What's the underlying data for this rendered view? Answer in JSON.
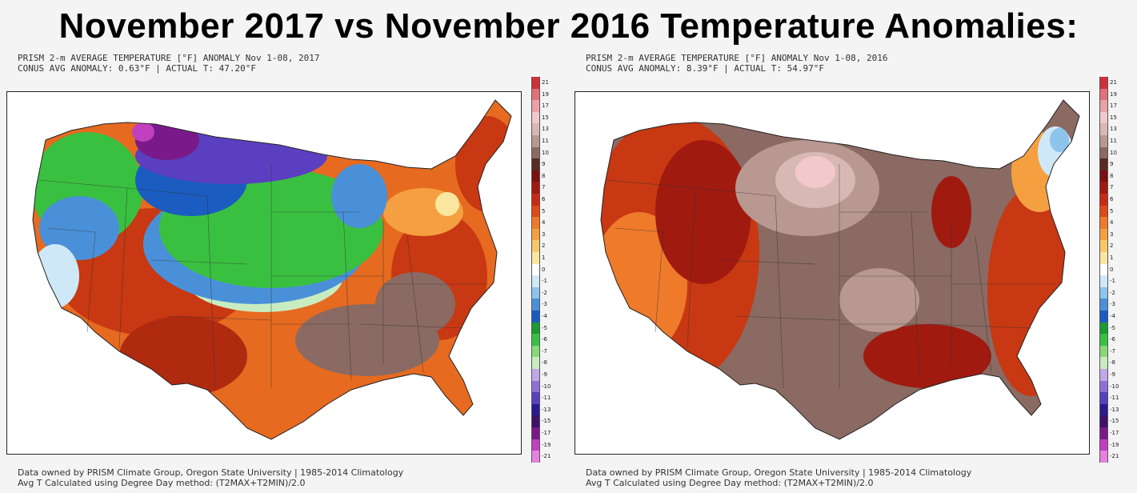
{
  "title": "November 2017 vs November 2016 Temperature Anomalies:",
  "panels": [
    {
      "header_line1": "PRISM 2-m AVERAGE TEMPERATURE [°F] ANOMALY Nov 1-08, 2017",
      "header_line2": "CONUS AVG ANOMALY: 0.63°F | ACTUAL T: 47.20°F",
      "footer_line1": "Data owned by PRISM Climate Group, Oregon State University | 1985-2014 Climatology",
      "footer_line2": "Avg T Calculated using Degree Day method: (T2MAX+T2MIN)/2.0"
    },
    {
      "header_line1": "PRISM 2-m AVERAGE TEMPERATURE [°F] ANOMALY Nov 1-08, 2016",
      "header_line2": "CONUS AVG ANOMALY: 8.39°F | ACTUAL T: 54.97°F",
      "footer_line1": "Data owned by PRISM Climate Group, Oregon State University | 1985-2014 Climatology",
      "footer_line2": "Avg T Calculated using Degree Day method: (T2MAX+T2MIN)/2.0"
    }
  ],
  "colorbar_labels": [
    "21",
    "19",
    "17",
    "15",
    "13",
    "11",
    "10",
    "9",
    "8",
    "7",
    "6",
    "5",
    "4",
    "3",
    "2",
    "1",
    "0",
    "-1",
    "-2",
    "-3",
    "-4",
    "-5",
    "-6",
    "-7",
    "-8",
    "-9",
    "-10",
    "-11",
    "-13",
    "-15",
    "-17",
    "-19",
    "-21"
  ],
  "colorbar_colors": [
    "#d0303a",
    "#e0707a",
    "#eca0a8",
    "#f2c8cc",
    "#d8b8b4",
    "#b89890",
    "#8a6a62",
    "#5a2a24",
    "#7a1010",
    "#a01a10",
    "#c82a12",
    "#e04a18",
    "#ee7a2a",
    "#f5a040",
    "#f8c868",
    "#fbe6a0",
    "#ffffff",
    "#cfe8f8",
    "#8cc4ec",
    "#4a90d8",
    "#1a5cc0",
    "#1a9a30",
    "#3ac040",
    "#88d878",
    "#c8ecc0",
    "#c0a8e8",
    "#9070d8",
    "#5a40c0",
    "#2a1a90",
    "#40106a",
    "#7a1a8a",
    "#c040c0",
    "#e880e0"
  ],
  "colors": {
    "background": "#f4f4f4",
    "map_frame": "#222222",
    "warm_dark": "#b02a10",
    "warm_orange": "#ee7a2a",
    "cool_green": "#3ac040",
    "cool_blue": "#1a5cc0",
    "cold_purple": "#5a1a9a",
    "brown": "#8a6a62"
  }
}
